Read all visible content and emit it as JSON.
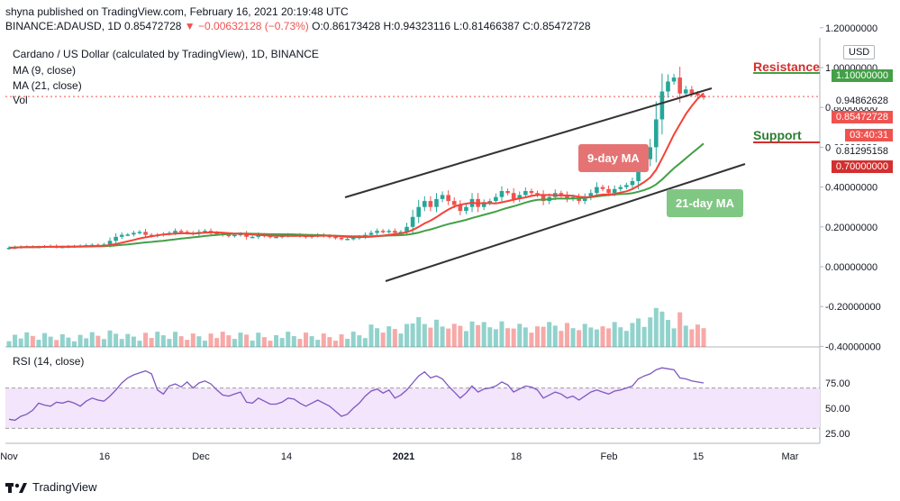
{
  "header": {
    "line1": "shyna published on TradingView.com, February 16, 2021 20:19:48 UTC",
    "symbol": "BINANCE:ADAUSD, 1D",
    "last": "0.85472728",
    "change": "−0.00632128 (−0.73%)",
    "ohlc": "O:0.86173428 H:0.94323116 L:0.81466387 C:0.85472728"
  },
  "legend": {
    "title": "Cardano / US Dollar (calculated by TradingView), 1D, BINANCE",
    "ma9": "MA (9, close)",
    "ma21": "MA (21, close)",
    "vol": "Vol",
    "rsi": "RSI (14, close)"
  },
  "currency_button": "USD",
  "annotations": {
    "resistance": "Resistance",
    "support": "Support",
    "ma9_label": "9-day MA",
    "ma21_label": "21-day MA"
  },
  "price_tags": {
    "resistance": "1.10000000",
    "ma21_value": "0.94862628",
    "last": "0.85472728",
    "countdown": "03:40:31",
    "ma9_value": "0.81295158",
    "support": "0.70000000"
  },
  "footer": {
    "brand": "TradingView"
  },
  "colors": {
    "up": "#26a69a",
    "down": "#ef5350",
    "ma9": "#f44336",
    "ma21": "#43a047",
    "rsi": "#7e57c2",
    "rsi_band": "#f3e5fb",
    "trendline": "#333333",
    "resistance": "#43a047",
    "support": "#d32f2f"
  },
  "chart_data": [
    {
      "type": "candlestick",
      "title": "Cardano / US Dollar (calculated by TradingView), 1D, BINANCE",
      "y_ticks": [
        1.2,
        1.0,
        0.8,
        0.6,
        0.4,
        0.2,
        0.0,
        -0.2,
        -0.4
      ],
      "y_tick_labels": [
        "1.20000000",
        "1.00000000",
        "0.80000000",
        "0.60000000",
        "0.40000000",
        "0.20000000",
        "0.00000000",
        "-0.20000000",
        "-0.40000000"
      ],
      "ylim": [
        -0.43,
        1.28
      ],
      "x_tick_labels": [
        "Nov",
        "16",
        "Dec",
        "14",
        "2021",
        "18",
        "Feb",
        "15",
        "Mar"
      ],
      "closes": [
        0.095,
        0.098,
        0.1,
        0.101,
        0.1,
        0.1,
        0.102,
        0.104,
        0.1,
        0.1,
        0.102,
        0.103,
        0.105,
        0.108,
        0.11,
        0.108,
        0.112,
        0.13,
        0.15,
        0.16,
        0.162,
        0.17,
        0.175,
        0.16,
        0.155,
        0.16,
        0.165,
        0.17,
        0.18,
        0.175,
        0.17,
        0.165,
        0.175,
        0.18,
        0.17,
        0.165,
        0.16,
        0.155,
        0.16,
        0.165,
        0.15,
        0.15,
        0.16,
        0.155,
        0.15,
        0.15,
        0.155,
        0.16,
        0.16,
        0.155,
        0.15,
        0.155,
        0.16,
        0.155,
        0.15,
        0.145,
        0.14,
        0.14,
        0.145,
        0.15,
        0.16,
        0.17,
        0.18,
        0.175,
        0.18,
        0.17,
        0.175,
        0.2,
        0.25,
        0.3,
        0.33,
        0.3,
        0.34,
        0.36,
        0.33,
        0.31,
        0.28,
        0.3,
        0.34,
        0.3,
        0.32,
        0.33,
        0.35,
        0.38,
        0.37,
        0.34,
        0.36,
        0.38,
        0.37,
        0.36,
        0.33,
        0.35,
        0.37,
        0.36,
        0.34,
        0.35,
        0.33,
        0.35,
        0.37,
        0.4,
        0.39,
        0.37,
        0.39,
        0.4,
        0.41,
        0.43,
        0.5,
        0.54,
        0.6,
        0.74,
        0.88,
        0.93,
        0.95,
        0.87,
        0.89,
        0.87,
        0.86,
        0.85
      ],
      "series": [
        {
          "name": "MA (9, close)",
          "last_value": 0.81295158
        },
        {
          "name": "MA (21, close)",
          "last_value": 0.94862628
        }
      ],
      "levels": [
        {
          "name": "Resistance",
          "value": 1.1
        },
        {
          "name": "Support",
          "value": 0.7
        }
      ],
      "last_price": 0.85472728
    },
    {
      "type": "line",
      "title": "RSI (14, close)",
      "y_ticks": [
        25,
        50,
        75
      ],
      "band": [
        30,
        70
      ],
      "values": [
        39,
        38,
        42,
        44,
        48,
        55,
        53,
        52,
        56,
        55,
        57,
        55,
        52,
        57,
        60,
        58,
        57,
        62,
        68,
        75,
        80,
        83,
        85,
        87,
        84,
        68,
        64,
        72,
        74,
        71,
        76,
        70,
        75,
        77,
        74,
        68,
        63,
        62,
        64,
        66,
        56,
        55,
        60,
        57,
        54,
        54,
        56,
        60,
        59,
        55,
        52,
        55,
        58,
        55,
        52,
        47,
        42,
        44,
        50,
        55,
        62,
        67,
        69,
        65,
        68,
        60,
        63,
        68,
        75,
        82,
        86,
        80,
        82,
        79,
        72,
        66,
        60,
        65,
        72,
        66,
        69,
        70,
        72,
        76,
        73,
        66,
        69,
        72,
        71,
        68,
        60,
        63,
        66,
        64,
        60,
        62,
        58,
        62,
        66,
        68,
        66,
        64,
        67,
        68,
        70,
        72,
        79,
        82,
        84,
        88,
        90,
        89,
        88,
        80,
        79,
        77,
        76,
        75
      ]
    }
  ]
}
